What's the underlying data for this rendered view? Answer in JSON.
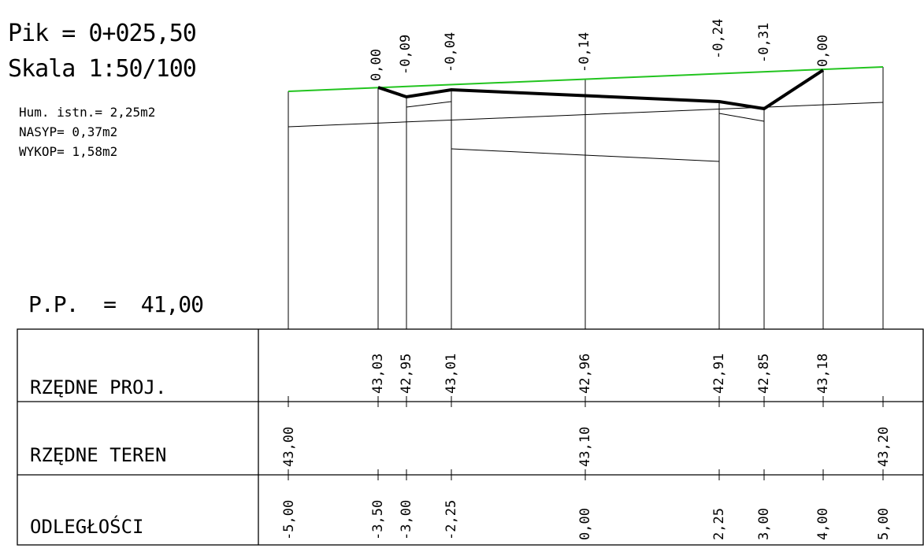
{
  "header": {
    "pik": "Pik = 0+025,50",
    "skala": "Skala 1:50/100",
    "hum": "Hum. istn.= 2,25m2",
    "nasyp": "NASYP= 0,37m2",
    "wykop": "WYKOP= 1,58m2",
    "pp": "P.P.  =  41,00"
  },
  "table": {
    "rows": [
      "RZĘDNE PROJ.",
      "RZĘDNE TEREN",
      "ODLEGŁOŚCI"
    ],
    "rzedne_proj": [
      "43,03",
      "42,95",
      "43,01",
      "42,96",
      "42,91",
      "42,85",
      "43,18"
    ],
    "rzedne_teren": [
      "43,00",
      "43,10",
      "43,20"
    ],
    "odleglosci": [
      "-5,00",
      "-3,50",
      "-3,00",
      "-2,25",
      "0,00",
      "2,25",
      "3,00",
      "4,00",
      "5,00"
    ]
  },
  "top_labels": [
    "0,00",
    "-0,09",
    "-0,04",
    "-0,14",
    "-0,24",
    "-0,31",
    "0,00"
  ],
  "colors": {
    "terrain": "#22c41f",
    "line": "#000000",
    "background": "#ffffff"
  }
}
